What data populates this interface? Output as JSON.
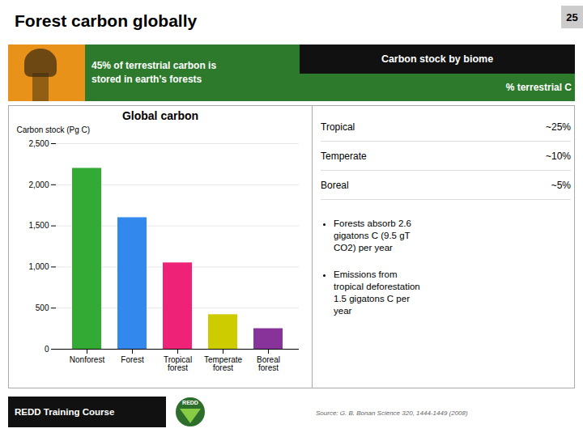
{
  "chart_data": {
    "type": "bar",
    "title": "Global carbon",
    "categories": [
      "Nonforest",
      "Forest",
      "Tropical\nforest",
      "Temperate\nforest",
      "Boreal\nforest"
    ],
    "values": [
      2200,
      1600,
      1050,
      420,
      250
    ],
    "colors": [
      "#33aa33",
      "#3388ee",
      "#ee2277",
      "#cccc00",
      "#883399"
    ],
    "ylabel": "Carbon stock (Pg C)",
    "ylim": [
      0,
      2500
    ],
    "yticks": [
      0,
      500,
      1000,
      1500,
      2000,
      2500
    ],
    "grid": true,
    "annotations": [
      "Forest carbon globally",
      "45% of terrestrial carbon is",
      "stored in earth’s forests",
      "Carbon stock by biome",
      "% terrestrial C",
      "Tropical",
      "~25%",
      "Temperate",
      "~10%",
      "Boreal",
      "~5%",
      "Forests absorb 2.6",
      "gigatons C (9.5 gT",
      "CO2) per year",
      "Emissions from",
      "tropical deforestation",
      "1.5 gigatons C per",
      "year",
      "REDD Training Course",
      "REDD",
      "Source: G. B. Bonan Science 320, 1444-1449 (2008)",
      "25"
    ]
  }
}
